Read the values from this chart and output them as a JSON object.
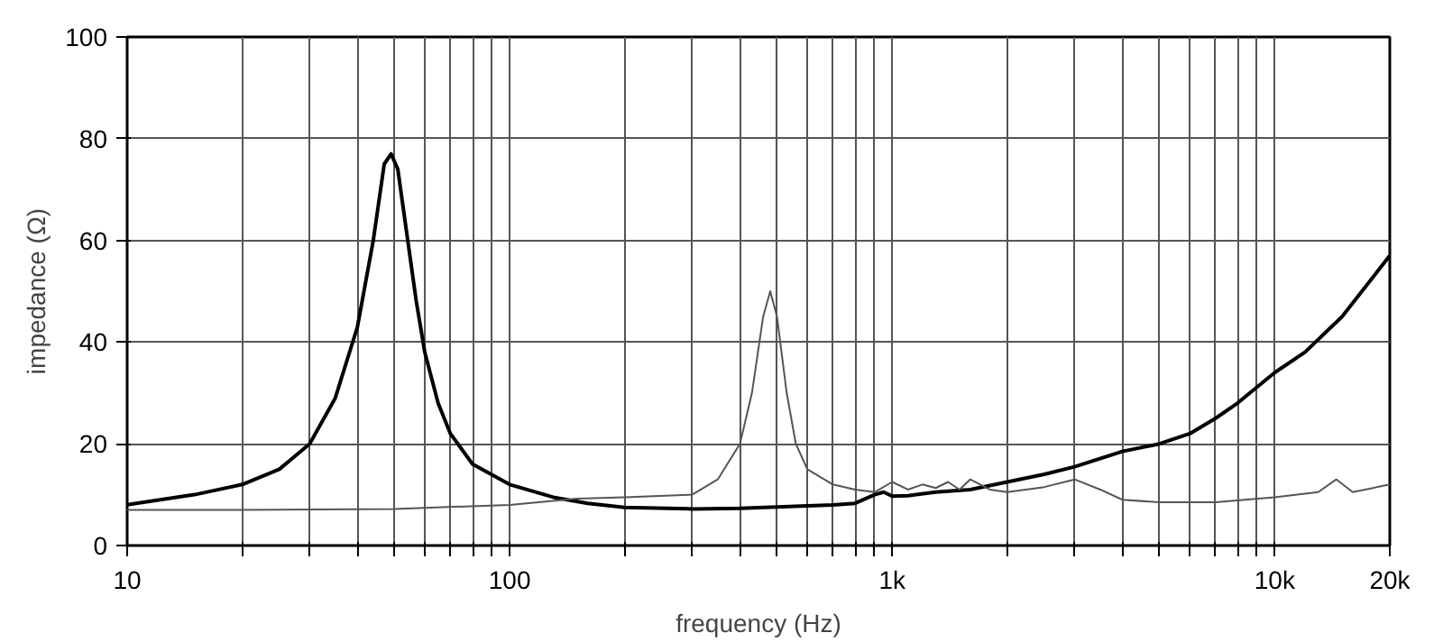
{
  "chart_data": {
    "type": "line",
    "xlabel": "frequency (Hz)",
    "ylabel": "impedance (Ω)",
    "log": "x",
    "grid": true,
    "xlim": [
      10,
      20000
    ],
    "ylim": [
      0,
      100
    ],
    "xticks": [
      {
        "value": 10,
        "label": "10"
      },
      {
        "value": 20,
        "label": null
      },
      {
        "value": 30,
        "label": null
      },
      {
        "value": 40,
        "label": null
      },
      {
        "value": 50,
        "label": null
      },
      {
        "value": 60,
        "label": null
      },
      {
        "value": 70,
        "label": null
      },
      {
        "value": 80,
        "label": null
      },
      {
        "value": 90,
        "label": null
      },
      {
        "value": 100,
        "label": "100"
      },
      {
        "value": 200,
        "label": null
      },
      {
        "value": 300,
        "label": null
      },
      {
        "value": 400,
        "label": null
      },
      {
        "value": 500,
        "label": null
      },
      {
        "value": 600,
        "label": null
      },
      {
        "value": 700,
        "label": null
      },
      {
        "value": 800,
        "label": null
      },
      {
        "value": 900,
        "label": null
      },
      {
        "value": 1000,
        "label": "1k"
      },
      {
        "value": 2000,
        "label": null
      },
      {
        "value": 3000,
        "label": null
      },
      {
        "value": 4000,
        "label": null
      },
      {
        "value": 5000,
        "label": null
      },
      {
        "value": 6000,
        "label": null
      },
      {
        "value": 7000,
        "label": null
      },
      {
        "value": 8000,
        "label": null
      },
      {
        "value": 9000,
        "label": null
      },
      {
        "value": 10000,
        "label": "10k"
      },
      {
        "value": 20000,
        "label": "20k"
      }
    ],
    "yticks": [
      0,
      20,
      40,
      60,
      80,
      100
    ],
    "series": [
      {
        "color": "#000000",
        "x": [
          10,
          15,
          20,
          25,
          30,
          35,
          40,
          44,
          47,
          49,
          51,
          53,
          57,
          60,
          65,
          70,
          80,
          100,
          130,
          160,
          200,
          300,
          400,
          500,
          600,
          700,
          800,
          900,
          950,
          1000,
          1100,
          1300,
          1600,
          2000,
          2500,
          3000,
          4000,
          5000,
          6000,
          7000,
          8000,
          10000,
          12000,
          15000,
          20000
        ],
        "values": [
          8,
          10,
          12,
          15,
          20,
          29,
          43,
          60,
          75,
          77,
          74,
          65,
          48,
          38,
          28,
          22,
          16,
          12,
          9.5,
          8.3,
          7.5,
          7.2,
          7.3,
          7.6,
          7.8,
          8,
          8.3,
          10,
          10.5,
          9.7,
          9.8,
          10.5,
          11,
          12.5,
          14,
          15.5,
          18.5,
          20,
          22,
          25,
          28,
          34,
          38,
          45,
          57
        ]
      },
      {
        "color": "#555555",
        "x": [
          10,
          20,
          50,
          100,
          150,
          200,
          300,
          350,
          400,
          430,
          460,
          480,
          500,
          530,
          560,
          600,
          700,
          800,
          900,
          1000,
          1100,
          1200,
          1300,
          1400,
          1500,
          1600,
          1800,
          2000,
          2500,
          3000,
          3500,
          4000,
          5000,
          7000,
          10000,
          13000,
          14500,
          16000,
          20000
        ],
        "values": [
          7,
          7,
          7.2,
          8,
          9.2,
          9.5,
          10,
          13,
          20,
          30,
          45,
          50,
          45,
          30,
          20,
          15,
          12,
          11,
          10.5,
          12.5,
          11,
          12,
          11.3,
          12.5,
          11,
          13,
          11,
          10.5,
          11.5,
          13,
          11,
          9,
          8.5,
          8.5,
          9.5,
          10.5,
          13,
          10.5,
          12
        ]
      }
    ]
  }
}
